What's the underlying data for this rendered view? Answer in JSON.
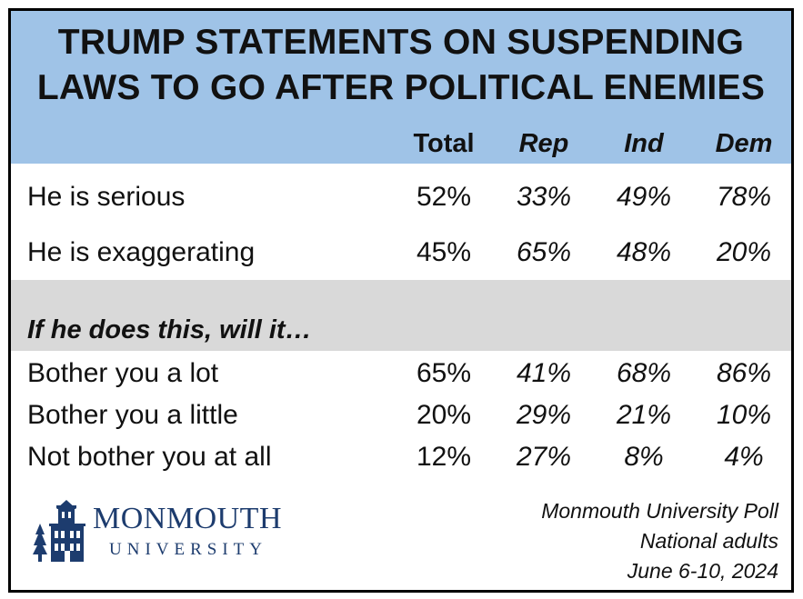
{
  "title_lines": [
    "TRUMP STATEMENTS ON SUSPENDING",
    "LAWS TO GO AFTER POLITICAL ENEMIES"
  ],
  "columns": [
    "Total",
    "Rep",
    "Ind",
    "Dem"
  ],
  "section1": {
    "rows": [
      {
        "label": "He is serious",
        "values": [
          "52%",
          "33%",
          "49%",
          "78%"
        ]
      },
      {
        "label": "He is exaggerating",
        "values": [
          "45%",
          "65%",
          "48%",
          "20%"
        ]
      }
    ]
  },
  "section2": {
    "heading": "If he does this, will it…",
    "rows": [
      {
        "label": "Bother you a lot",
        "values": [
          "65%",
          "41%",
          "68%",
          "86%"
        ]
      },
      {
        "label": "Bother you a little",
        "values": [
          "20%",
          "29%",
          "21%",
          "10%"
        ]
      },
      {
        "label": "Not bother you at all",
        "values": [
          "12%",
          "27%",
          "8%",
          "4%"
        ]
      }
    ]
  },
  "logo": {
    "name": "MONMOUTH",
    "sub": "UNIVERSITY",
    "color": "#1d3c6e"
  },
  "source_lines": [
    "Monmouth University Poll",
    "National adults",
    "June 6-10, 2024"
  ],
  "colors": {
    "header": "#9fc3e7",
    "band": "#d9d9d9"
  },
  "chart_data": {
    "type": "table",
    "title": "TRUMP STATEMENTS ON SUSPENDING LAWS TO GO AFTER POLITICAL ENEMIES",
    "columns": [
      "Total",
      "Rep",
      "Ind",
      "Dem"
    ],
    "rows": [
      {
        "label": "He is serious",
        "values": [
          52,
          33,
          49,
          78
        ]
      },
      {
        "label": "He is exaggerating",
        "values": [
          45,
          65,
          48,
          20
        ]
      },
      {
        "label": "Bother you a lot",
        "values": [
          65,
          41,
          68,
          86
        ]
      },
      {
        "label": "Bother you a little",
        "values": [
          20,
          29,
          21,
          10
        ]
      },
      {
        "label": "Not bother you at all",
        "values": [
          12,
          27,
          8,
          4
        ]
      }
    ]
  }
}
